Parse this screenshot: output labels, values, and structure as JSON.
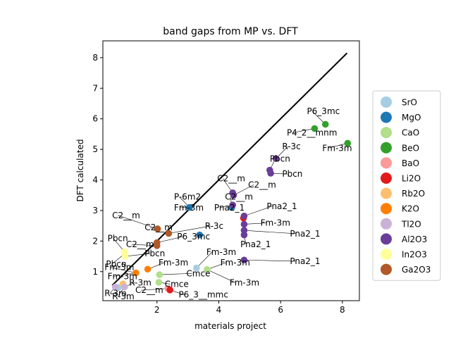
{
  "chart_data": {
    "type": "scatter",
    "title": "band gaps from MP vs. DFT",
    "xlabel": "materials project",
    "ylabel": "DFT calculated",
    "xlim": [
      0.25,
      8.55
    ],
    "ylim": [
      0.05,
      8.55
    ],
    "xticks": [
      2,
      4,
      6,
      8
    ],
    "yticks": [
      1,
      2,
      3,
      4,
      5,
      6,
      7,
      8
    ],
    "legend_position": "right",
    "reference_line": {
      "name": "y = x",
      "x": [
        0.55,
        8.15
      ],
      "y": [
        0.55,
        8.15
      ],
      "color": "#000000"
    },
    "series": [
      {
        "name": "SrO",
        "color": "#a6cee3",
        "points": [
          {
            "x": 3.28,
            "y": 1.12,
            "label": "Fm-3m"
          },
          {
            "x": 0.75,
            "y": 0.48,
            "label": ""
          }
        ]
      },
      {
        "name": "MgO",
        "color": "#1f78b4",
        "points": [
          {
            "x": 3.05,
            "y": 3.1,
            "label": "P-6m2"
          },
          {
            "x": 4.42,
            "y": 3.1,
            "label": "C2__m"
          },
          {
            "x": 3.38,
            "y": 2.2,
            "label": "R-3c"
          }
        ]
      },
      {
        "name": "CaO",
        "color": "#b2df8a",
        "points": [
          {
            "x": 2.08,
            "y": 0.9,
            "label": "Cmce"
          },
          {
            "x": 2.06,
            "y": 0.65,
            "label": "Cmce"
          },
          {
            "x": 3.62,
            "y": 1.07,
            "label": "Fm-3m"
          }
        ]
      },
      {
        "name": "BeO",
        "color": "#33a02c",
        "points": [
          {
            "x": 7.45,
            "y": 5.82,
            "label": "P6_3mc"
          },
          {
            "x": 7.1,
            "y": 5.68,
            "label": "P4_2__mnm"
          },
          {
            "x": 8.17,
            "y": 5.2,
            "label": "Fm-3m"
          }
        ]
      },
      {
        "name": "BaO",
        "color": "#fb9a99",
        "points": [
          {
            "x": 2.35,
            "y": 0.45,
            "label": "C2__m"
          }
        ]
      },
      {
        "name": "Li2O",
        "color": "#e31a1c",
        "points": [
          {
            "x": 4.8,
            "y": 2.75,
            "label": ""
          },
          {
            "x": 2.42,
            "y": 0.4,
            "label": "P6_3__mmc"
          }
        ]
      },
      {
        "name": "Rb2O",
        "color": "#fdbf6f",
        "points": [
          {
            "x": 0.9,
            "y": 0.6,
            "label": ""
          }
        ]
      },
      {
        "name": "K2O",
        "color": "#ff7f00",
        "points": [
          {
            "x": 1.7,
            "y": 1.08,
            "label": "Fm-3m"
          },
          {
            "x": 1.32,
            "y": 0.96,
            "label": "Fm-3m"
          }
        ]
      },
      {
        "name": "Tl2O",
        "color": "#cab2d6",
        "points": [
          {
            "x": 0.65,
            "y": 0.5,
            "label": "R-3m"
          },
          {
            "x": 0.95,
            "y": 0.5,
            "label": "R-3m"
          }
        ]
      },
      {
        "name": "Al2O3",
        "color": "#6a3d9a",
        "points": [
          {
            "x": 5.85,
            "y": 4.7,
            "label": "R-3c"
          },
          {
            "x": 5.65,
            "y": 4.32,
            "label": "Pbcn"
          },
          {
            "x": 5.68,
            "y": 4.22,
            "label": "Pbcn"
          },
          {
            "x": 4.45,
            "y": 3.58,
            "label": "C2__m"
          },
          {
            "x": 4.48,
            "y": 3.5,
            "label": "C2__m"
          },
          {
            "x": 4.45,
            "y": 3.18,
            "label": "Pna2_1"
          },
          {
            "x": 4.82,
            "y": 2.82,
            "label": "Pna2_1"
          },
          {
            "x": 4.82,
            "y": 2.55,
            "label": "Fm-3m"
          },
          {
            "x": 4.82,
            "y": 2.35,
            "label": "Pna2_1"
          },
          {
            "x": 4.82,
            "y": 2.2,
            "label": "Pna2_1"
          },
          {
            "x": 4.82,
            "y": 1.38,
            "label": "Pna2_1"
          }
        ]
      },
      {
        "name": "In2O3",
        "color": "#ffff99",
        "points": [
          {
            "x": 0.95,
            "y": 1.65,
            "label": "Pbcn"
          },
          {
            "x": 0.97,
            "y": 1.5,
            "label": "Pbcn"
          },
          {
            "x": 0.95,
            "y": 1.58,
            "label": ""
          }
        ]
      },
      {
        "name": "Ga2O3",
        "color": "#b15928",
        "points": [
          {
            "x": 2.02,
            "y": 2.4,
            "label": "C2__m"
          },
          {
            "x": 2.38,
            "y": 2.25,
            "label": "R-3c"
          },
          {
            "x": 2.0,
            "y": 1.95,
            "label": "P6_3mc"
          },
          {
            "x": 2.0,
            "y": 1.85,
            "label": "C2__m"
          }
        ]
      }
    ],
    "annotations": [
      {
        "text": "P6_3mc",
        "x": 6.85,
        "y": 6.15,
        "px": 7.45,
        "py": 5.82
      },
      {
        "text": "P4_2__mnm",
        "x": 6.2,
        "y": 5.45,
        "px": 7.1,
        "py": 5.68
      },
      {
        "text": "Fm-3m",
        "x": 7.35,
        "y": 4.95,
        "px": 8.17,
        "py": 5.2
      },
      {
        "text": "R-3c",
        "x": 6.05,
        "y": 5.0,
        "px": 5.85,
        "py": 4.7
      },
      {
        "text": "Pbcn",
        "x": 5.65,
        "y": 4.6,
        "px": 5.65,
        "py": 4.32
      },
      {
        "text": "Pbcn",
        "x": 6.05,
        "y": 4.1,
        "px": 5.68,
        "py": 4.22
      },
      {
        "text": "C2__m",
        "x": 3.95,
        "y": 3.95,
        "px": 4.45,
        "py": 3.58
      },
      {
        "text": "C2__m",
        "x": 4.95,
        "y": 3.75,
        "px": 4.48,
        "py": 3.5
      },
      {
        "text": "P-6m2",
        "x": 2.55,
        "y": 3.35,
        "px": 3.05,
        "py": 3.1
      },
      {
        "text": "C2__m",
        "x": 4.2,
        "y": 3.35,
        "px": 4.42,
        "py": 3.1
      },
      {
        "text": "Fm-3m",
        "x": 2.55,
        "y": 3.0,
        "px": 3.05,
        "py": 3.1
      },
      {
        "text": "Pna2_1",
        "x": 3.85,
        "y": 3.0,
        "px": 4.45,
        "py": 3.18
      },
      {
        "text": "Pna2_1",
        "x": 5.55,
        "y": 3.05,
        "px": 4.82,
        "py": 2.82
      },
      {
        "text": "Fm-3m",
        "x": 5.35,
        "y": 2.5,
        "px": 4.82,
        "py": 2.55
      },
      {
        "text": "Pna2_1",
        "x": 4.7,
        "y": 1.8,
        "px": 4.82,
        "py": 2.2
      },
      {
        "text": "Pna2_1",
        "x": 6.3,
        "y": 2.15,
        "px": 4.82,
        "py": 2.35
      },
      {
        "text": "R-3c",
        "x": 3.55,
        "y": 2.4,
        "px": 2.38,
        "py": 2.25
      },
      {
        "text": "Pna2_1",
        "x": 6.3,
        "y": 1.25,
        "px": 4.82,
        "py": 1.38
      },
      {
        "text": "C2__m",
        "x": 0.55,
        "y": 2.75,
        "px": 2.02,
        "py": 2.4
      },
      {
        "text": "C2__m",
        "x": 1.6,
        "y": 2.35,
        "px": 2.02,
        "py": 2.4
      },
      {
        "text": "P6_3mc",
        "x": 2.65,
        "y": 2.05,
        "px": 2.0,
        "py": 1.95
      },
      {
        "text": "Pbcn",
        "x": 0.4,
        "y": 2.0,
        "px": 0.95,
        "py": 1.65
      },
      {
        "text": "C2__m",
        "x": 1.0,
        "y": 1.8,
        "px": 2.0,
        "py": 1.85
      },
      {
        "text": "Pbcn",
        "x": 1.6,
        "y": 1.5,
        "px": 0.97,
        "py": 1.5
      },
      {
        "text": "Fm-3m",
        "x": 3.6,
        "y": 1.55,
        "px": 3.28,
        "py": 1.12
      },
      {
        "text": "Fm-3m",
        "x": 2.05,
        "y": 1.2,
        "px": 1.7,
        "py": 1.08
      },
      {
        "text": "Fm-3m",
        "x": 4.05,
        "y": 1.2,
        "px": 3.62,
        "py": 1.07
      },
      {
        "text": "Pbcn",
        "x": 0.35,
        "y": 1.15,
        "px": 0.95,
        "py": 1.58
      },
      {
        "text": "Fm-3m",
        "x": 0.3,
        "y": 1.05,
        "px": 1.32,
        "py": 0.96
      },
      {
        "text": "Fm-3m",
        "x": 0.4,
        "y": 0.75,
        "px": 1.32,
        "py": 0.96
      },
      {
        "text": "Cmce",
        "x": 2.95,
        "y": 0.85,
        "px": 2.08,
        "py": 0.9
      },
      {
        "text": "Cmce",
        "x": 2.25,
        "y": 0.5,
        "px": 2.06,
        "py": 0.65
      },
      {
        "text": "Fm-3m",
        "x": 4.35,
        "y": 0.55,
        "px": 3.62,
        "py": 1.07
      },
      {
        "text": "R-3m",
        "x": 1.1,
        "y": 0.55,
        "px": 0.95,
        "py": 0.5
      },
      {
        "text": "C2__m",
        "x": 1.3,
        "y": 0.3,
        "px": 2.35,
        "py": 0.45
      },
      {
        "text": "P6_3__mmc",
        "x": 2.7,
        "y": 0.15,
        "px": 2.42,
        "py": 0.4
      },
      {
        "text": "R-3m",
        "x": 0.3,
        "y": 0.2,
        "px": 0.65,
        "py": 0.5
      },
      {
        "text": "R-3m",
        "x": 0.55,
        "y": 0.1,
        "px": 0.95,
        "py": 0.5
      }
    ]
  }
}
